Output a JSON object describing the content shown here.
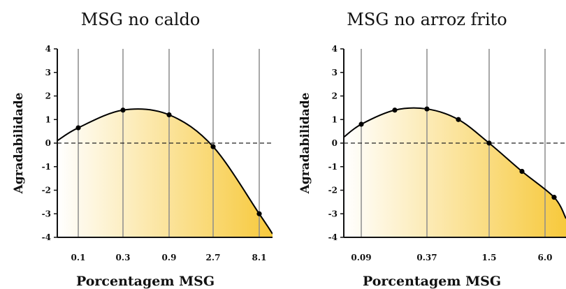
{
  "chart_data": [
    {
      "type": "line",
      "title": "MSG no caldo",
      "xlabel": "Porcentagem MSG",
      "ylabel": "Agradabilidade",
      "x_ticks": [
        "0.1",
        "0.3",
        "0.9",
        "2.7",
        "8.1"
      ],
      "ylim": [
        -4,
        4
      ],
      "y_ticks": [
        "4",
        "3",
        "2",
        "1",
        "0",
        "-1",
        "-2",
        "-3",
        "-4"
      ],
      "points": [
        {
          "x": "0.1",
          "y": 0.65
        },
        {
          "x": "0.3",
          "y": 1.4
        },
        {
          "x": "0.9",
          "y": 1.2
        },
        {
          "x": "2.7",
          "y": -0.15
        },
        {
          "x": "8.1",
          "y": -3.0
        }
      ],
      "grid": "vertical lines at x ticks",
      "reference_line": {
        "y": 0,
        "style": "dashed"
      }
    },
    {
      "type": "line",
      "title": "MSG no arroz frito",
      "xlabel": "Porcentagem MSG",
      "ylabel": "Agradabilidade",
      "x_ticks": [
        "0.09",
        "0.37",
        "1.5",
        "6.0"
      ],
      "ylim": [
        -4,
        4
      ],
      "y_ticks": [
        "4",
        "3",
        "2",
        "1",
        "0",
        "-1",
        "-2",
        "-3",
        "-4"
      ],
      "points": [
        {
          "x": "0.09",
          "y": 0.8
        },
        {
          "x": "",
          "y": 1.4
        },
        {
          "x": "0.37",
          "y": 1.45
        },
        {
          "x": "",
          "y": 1.0
        },
        {
          "x": "1.5",
          "y": 0.0
        },
        {
          "x": "",
          "y": -1.2
        },
        {
          "x": "6.0",
          "y": -2.3
        }
      ],
      "grid": "vertical lines at x ticks",
      "reference_line": {
        "y": 0,
        "style": "dashed"
      }
    }
  ],
  "colors": {
    "fill_light": "#fffdf0",
    "fill_dark": "#f7c93c",
    "curve": "#000000",
    "grid": "#8c8c8c",
    "axis": "#111111"
  }
}
